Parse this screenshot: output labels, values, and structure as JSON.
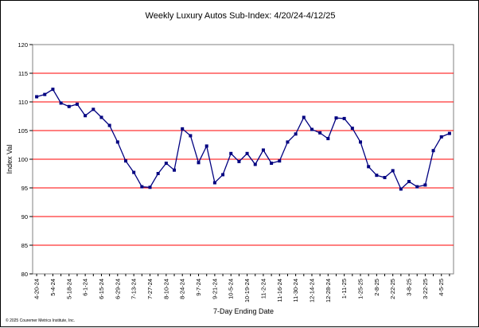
{
  "chart_data": {
    "type": "line",
    "title": "Weekly Luxury Autos Sub-Index: 4/20/24-4/12/25",
    "xlabel": "7-Day Ending Date",
    "ylabel": "Index Val",
    "ylim": [
      80,
      120
    ],
    "yticks": [
      80,
      85,
      90,
      95,
      100,
      105,
      110,
      115,
      120
    ],
    "grid": true,
    "colors": {
      "line": "#000080",
      "grid": "#ff0000",
      "plot_border": "#808080"
    },
    "x": [
      "4-20-24",
      "4-27-24",
      "5-4-24",
      "5-11-24",
      "5-18-24",
      "5-25-24",
      "6-1-24",
      "6-8-24",
      "6-15-24",
      "6-22-24",
      "6-29-24",
      "7-6-24",
      "7-13-24",
      "7-20-24",
      "7-27-24",
      "8-3-24",
      "8-10-24",
      "8-17-24",
      "8-24-24",
      "8-31-24",
      "9-7-24",
      "9-14-24",
      "9-21-24",
      "9-28-24",
      "10-5-24",
      "10-12-24",
      "10-19-24",
      "10-26-24",
      "11-2-24",
      "11-9-24",
      "11-16-24",
      "11-23-24",
      "11-30-24",
      "12-7-24",
      "12-14-24",
      "12-21-24",
      "12-28-24",
      "1-4-25",
      "1-11-25",
      "1-18-25",
      "1-25-25",
      "2-1-25",
      "2-8-25",
      "2-15-25",
      "2-22-25",
      "3-1-25",
      "3-8-25",
      "3-15-25",
      "3-22-25",
      "3-29-25",
      "4-5-25",
      "4-12-25"
    ],
    "xticks": [
      "4-20-24",
      "5-4-24",
      "5-18-24",
      "6-1-24",
      "6-15-24",
      "6-29-24",
      "7-13-24",
      "7-27-24",
      "8-10-24",
      "8-24-24",
      "9-7-24",
      "9-21-24",
      "10-5-24",
      "10-19-24",
      "11-2-24",
      "11-16-24",
      "11-30-24",
      "12-14-24",
      "12-28-24",
      "1-11-25",
      "1-25-25",
      "2-8-25",
      "2-22-25",
      "3-8-25",
      "3-22-25",
      "4-5-25"
    ],
    "series": [
      {
        "name": "",
        "values": [
          110.9,
          111.3,
          112.2,
          109.8,
          109.2,
          109.6,
          107.6,
          108.7,
          107.3,
          105.9,
          103.0,
          99.7,
          97.7,
          95.2,
          95.1,
          97.5,
          99.3,
          98.1,
          105.3,
          104.1,
          99.4,
          102.3,
          95.9,
          97.3,
          101.0,
          99.6,
          101.0,
          99.1,
          101.6,
          99.3,
          99.7,
          103.0,
          104.4,
          107.3,
          105.2,
          104.6,
          103.6,
          107.2,
          107.1,
          105.4,
          103.0,
          98.7,
          97.2,
          96.8,
          98.0,
          94.8,
          96.1,
          95.2,
          95.5,
          101.5,
          103.9,
          104.5
        ]
      }
    ]
  },
  "footer": {
    "copyright": "© 2025 Couremer Metrics Institute, Inc."
  }
}
